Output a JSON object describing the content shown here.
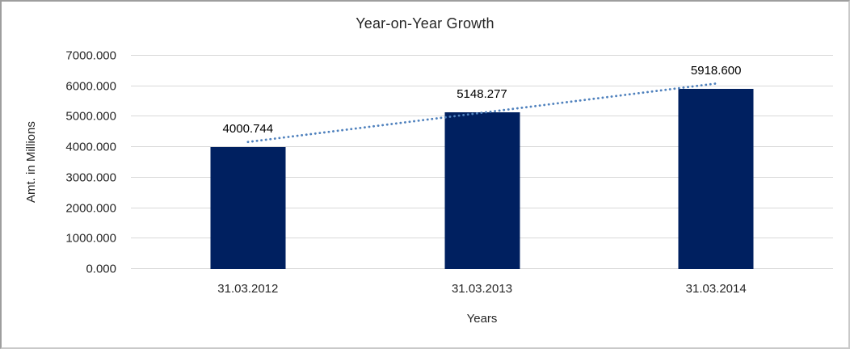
{
  "chart_data": {
    "type": "bar",
    "title": "Year-on-Year Growth",
    "categories": [
      "31.03.2012",
      "31.03.2013",
      "31.03.2014"
    ],
    "values": [
      4000.744,
      5148.277,
      5918.6
    ],
    "data_labels": [
      "4000.744",
      "5148.277",
      "5918.600"
    ],
    "xlabel": "Years",
    "ylabel": "Amt. in Millions",
    "ylim": [
      0,
      7000
    ],
    "ytick_values": [
      0,
      1000,
      2000,
      3000,
      4000,
      5000,
      6000,
      7000
    ],
    "ytick_labels": [
      "0.000",
      "1000.000",
      "2000.000",
      "3000.000",
      "4000.000",
      "5000.000",
      "6000.000",
      "7000.000"
    ],
    "grid": true,
    "legend": "none",
    "bar_color": "#002060",
    "gridline_color": "#d9d9d9",
    "trendline": {
      "type": "linear",
      "style": "dotted",
      "color": "#4f81bd"
    }
  }
}
